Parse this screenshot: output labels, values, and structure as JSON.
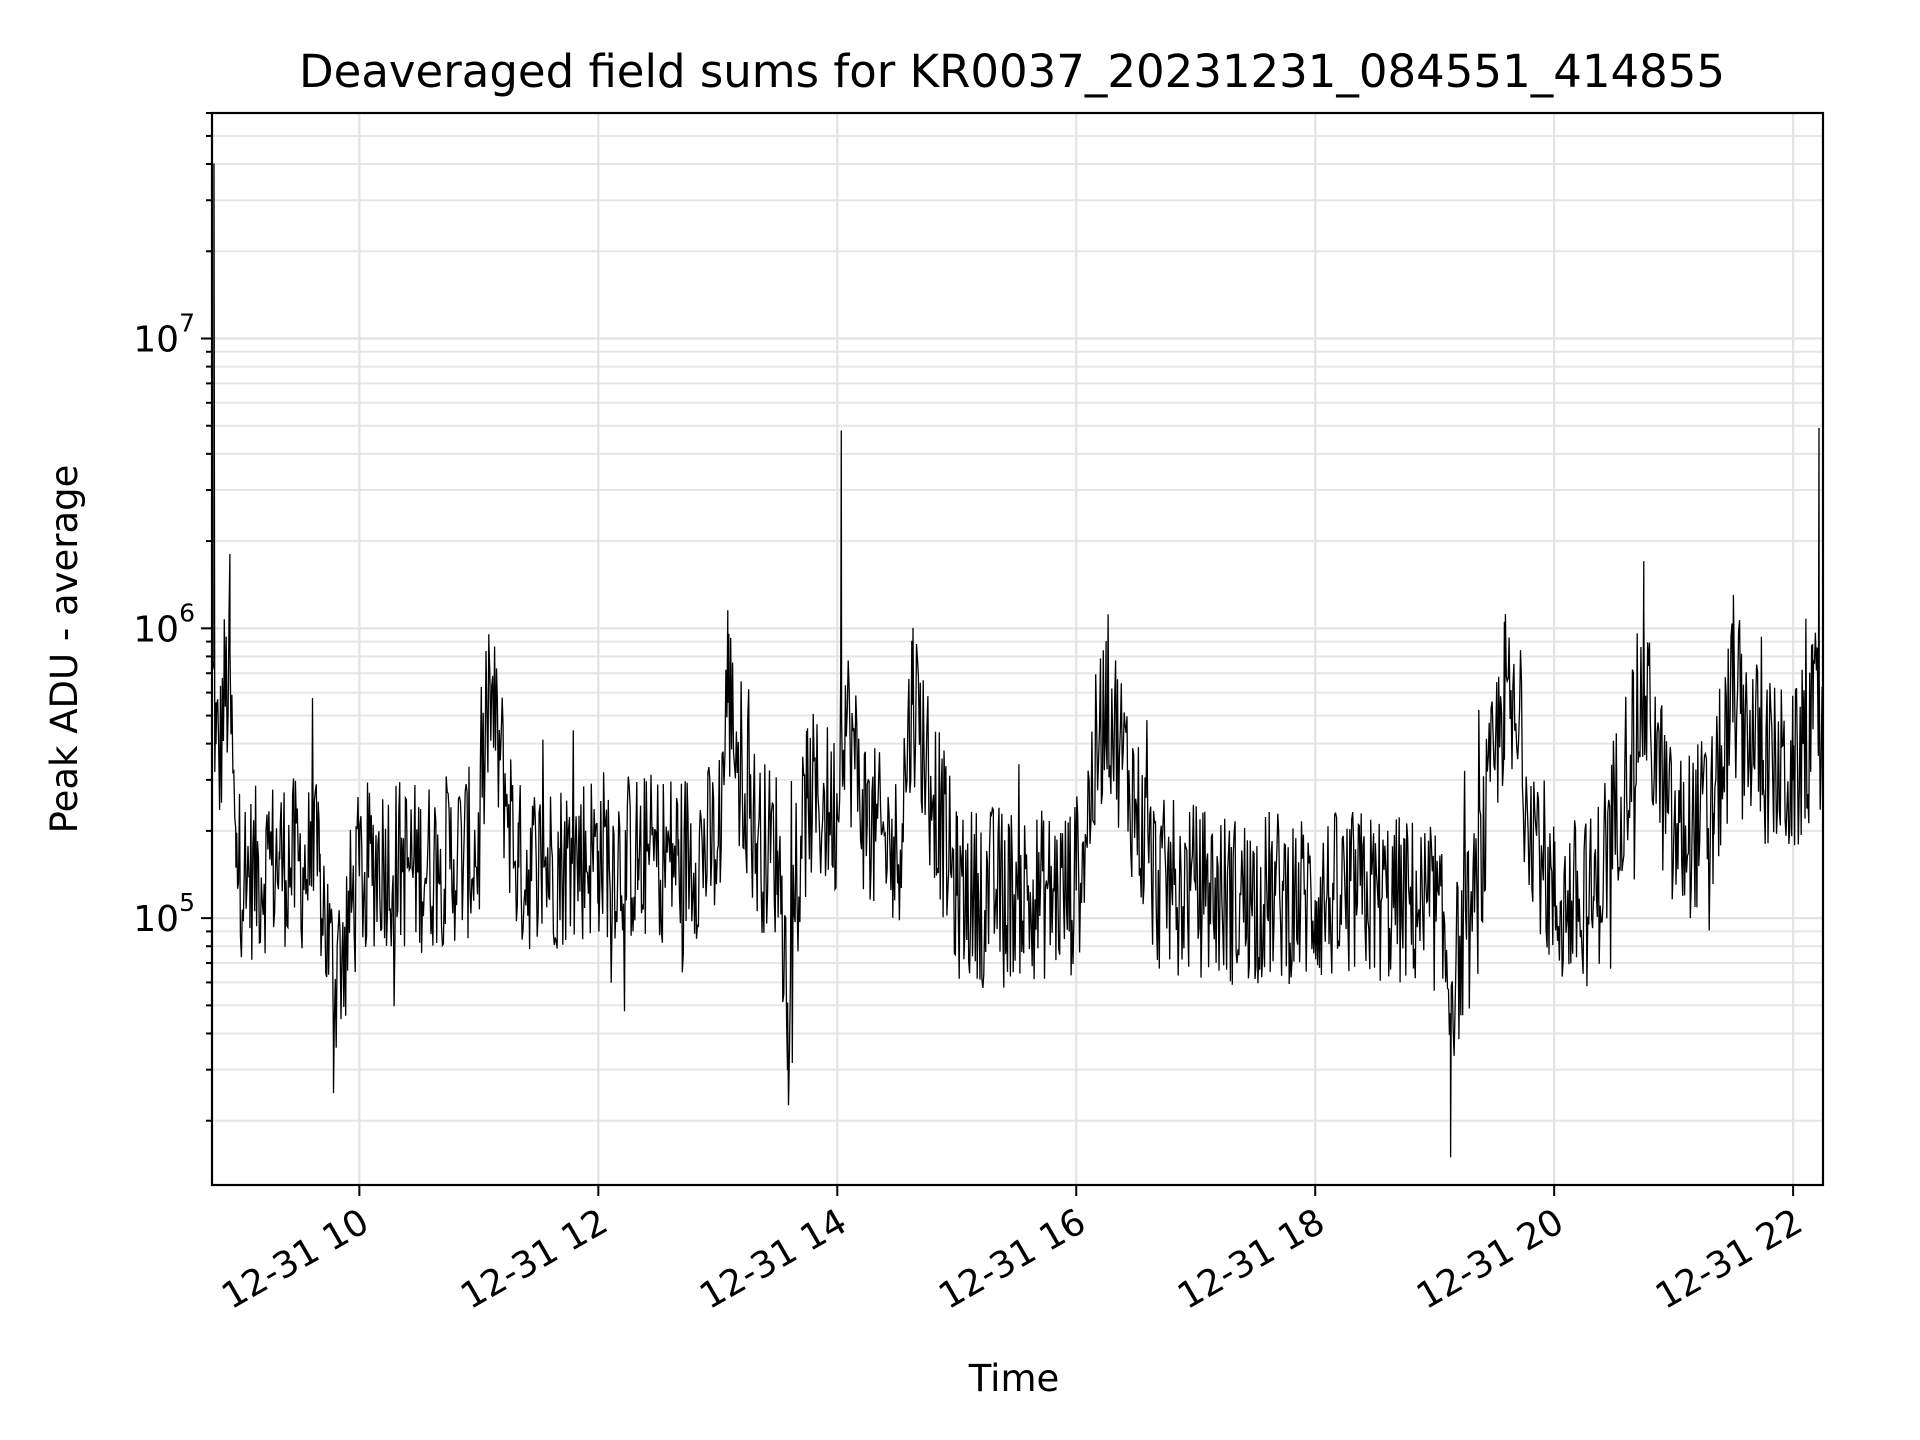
{
  "chart_data": {
    "type": "line",
    "title": "Deaveraged field sums for KR0037_20231231_084551_414855",
    "xlabel": "Time",
    "ylabel": "Peak ADU - average",
    "xscale": "time",
    "yscale": "log",
    "xlim": [
      "2023-12-31 08:46",
      "2023-12-31 22:15"
    ],
    "ylim": [
      12000,
      60000000
    ],
    "grid": true,
    "legend": "none",
    "x_ticks": [
      "12-31 10",
      "12-31 12",
      "12-31 14",
      "12-31 16",
      "12-31 18",
      "12-31 20",
      "12-31 22"
    ],
    "y_ticks": [
      {
        "base": "10",
        "exp": "5",
        "value": 100000
      },
      {
        "base": "10",
        "exp": "6",
        "value": 1000000
      },
      {
        "base": "10",
        "exp": "7",
        "value": 10000000
      }
    ],
    "series_color": "#000000",
    "series": [
      {
        "x": [
          "2023-12-31 08:46",
          "2023-12-31 08:47",
          "2023-12-31 08:48",
          "2023-12-31 08:50",
          "2023-12-31 08:52",
          "2023-12-31 08:55",
          "2023-12-31 08:58",
          "2023-12-31 09:05",
          "2023-12-31 09:20",
          "2023-12-31 09:40",
          "2023-12-31 09:47",
          "2023-12-31 10:00",
          "2023-12-31 10:10",
          "2023-12-31 10:30",
          "2023-12-31 11:00",
          "2023-12-31 11:05",
          "2023-12-31 11:20",
          "2023-12-31 11:40",
          "2023-12-31 12:00",
          "2023-12-31 12:20",
          "2023-12-31 12:40",
          "2023-12-31 13:00",
          "2023-12-31 13:05",
          "2023-12-31 13:20",
          "2023-12-31 13:30",
          "2023-12-31 13:35",
          "2023-12-31 13:45",
          "2023-12-31 14:00",
          "2023-12-31 14:02",
          "2023-12-31 14:15",
          "2023-12-31 14:30",
          "2023-12-31 14:38",
          "2023-12-31 15:00",
          "2023-12-31 15:20",
          "2023-12-31 15:40",
          "2023-12-31 16:00",
          "2023-12-31 16:15",
          "2023-12-31 16:40",
          "2023-12-31 17:00",
          "2023-12-31 17:20",
          "2023-12-31 17:40",
          "2023-12-31 18:00",
          "2023-12-31 18:20",
          "2023-12-31 18:40",
          "2023-12-31 19:00",
          "2023-12-31 19:08",
          "2023-12-31 19:20",
          "2023-12-31 19:35",
          "2023-12-31 20:00",
          "2023-12-31 20:20",
          "2023-12-31 20:45",
          "2023-12-31 21:00",
          "2023-12-31 21:20",
          "2023-12-31 21:30",
          "2023-12-31 21:45",
          "2023-12-31 22:00",
          "2023-12-31 22:10",
          "2023-12-31 22:13",
          "2023-12-31 22:15"
        ],
        "y": [
          1400000,
          40000000,
          400000,
          350000,
          600000,
          1800000,
          150000,
          140000,
          160000,
          145000,
          25000,
          140000,
          160000,
          150000,
          170000,
          950000,
          150000,
          155000,
          170000,
          160000,
          165000,
          175000,
          1150000,
          180000,
          170000,
          30000,
          260000,
          230000,
          4800000,
          210000,
          160000,
          1000000,
          120000,
          125000,
          120000,
          125000,
          900000,
          130000,
          125000,
          115000,
          120000,
          115000,
          120000,
          115000,
          110000,
          15000,
          105000,
          1050000,
          110000,
          115000,
          1700000,
          180000,
          230000,
          1300000,
          350000,
          300000,
          450000,
          4900000,
          500000
        ]
      }
    ]
  }
}
